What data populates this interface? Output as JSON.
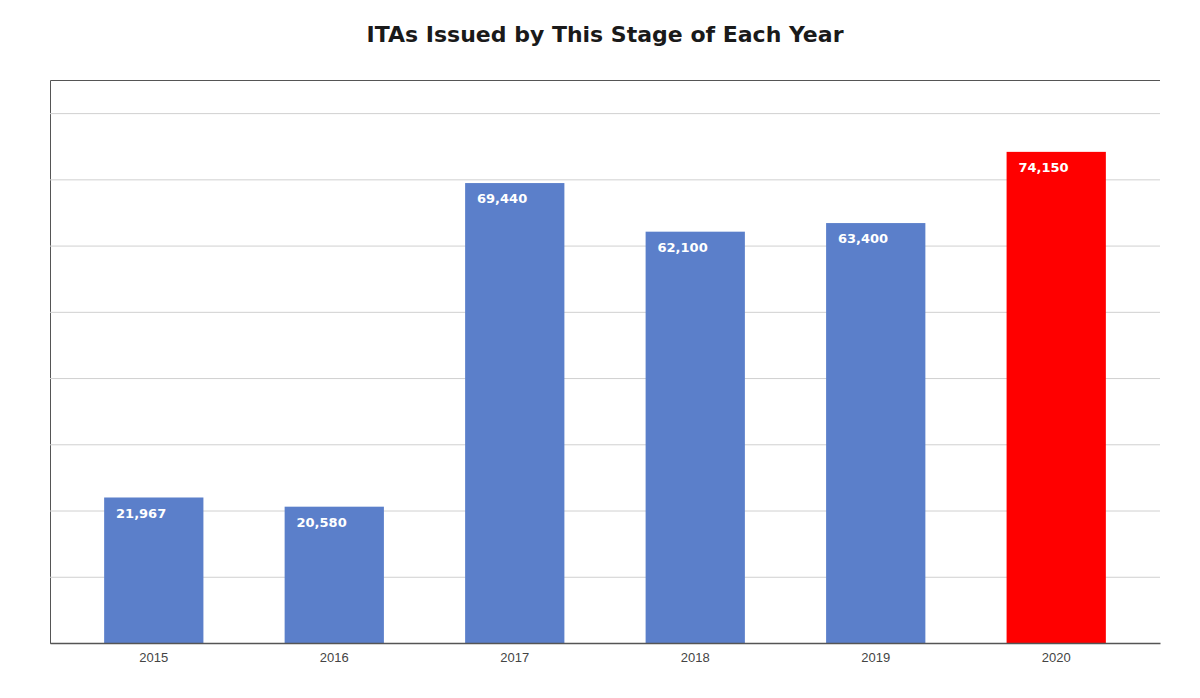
{
  "chart_data": {
    "type": "bar",
    "title": "ITAs Issued by This Stage of Each Year",
    "categories": [
      "2015",
      "2016",
      "2017",
      "2018",
      "2019",
      "2020"
    ],
    "values": [
      21967,
      20580,
      69440,
      62100,
      63400,
      74150
    ],
    "value_labels": [
      "21,967",
      "20,580",
      "69,440",
      "62,100",
      "63,400",
      "74,150"
    ],
    "colors": [
      "#5b7fca",
      "#5b7fca",
      "#5b7fca",
      "#5b7fca",
      "#5b7fca",
      "#ff0000"
    ],
    "data_labels": true,
    "ylim": [
      0,
      85000
    ],
    "yticks": [
      10000,
      20000,
      30000,
      40000,
      50000,
      60000,
      70000,
      80000
    ],
    "grid": true,
    "tick_labels": "x"
  }
}
